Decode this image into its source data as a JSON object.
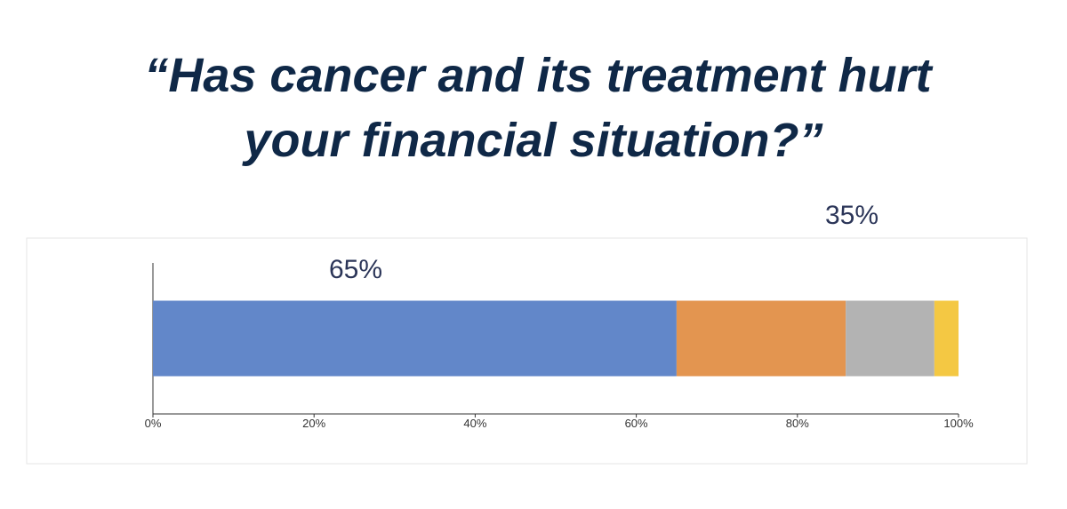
{
  "chart_data": {
    "type": "stacked_bar_horizontal",
    "title": [
      "“Has cancer and its treatment hurt",
      "your financial situation?”"
    ],
    "annotations": [
      "65%",
      "35%"
    ],
    "categories": [
      null
    ],
    "series": [
      {
        "color": "#6287c9",
        "values": [
          65
        ]
      },
      {
        "color": "#e39550",
        "values": [
          21
        ]
      },
      {
        "color": "#b3b3b3",
        "values": [
          11
        ]
      },
      {
        "color": "#f4c843",
        "values": [
          3
        ]
      }
    ],
    "xlim": [
      0,
      100
    ],
    "xticks": [
      {
        "value": 0,
        "label": "0%"
      },
      {
        "value": 20,
        "label": "20%"
      },
      {
        "value": 40,
        "label": "40%"
      },
      {
        "value": 60,
        "label": "60%"
      },
      {
        "value": 80,
        "label": "80%"
      },
      {
        "value": 100,
        "label": "100%"
      }
    ]
  }
}
